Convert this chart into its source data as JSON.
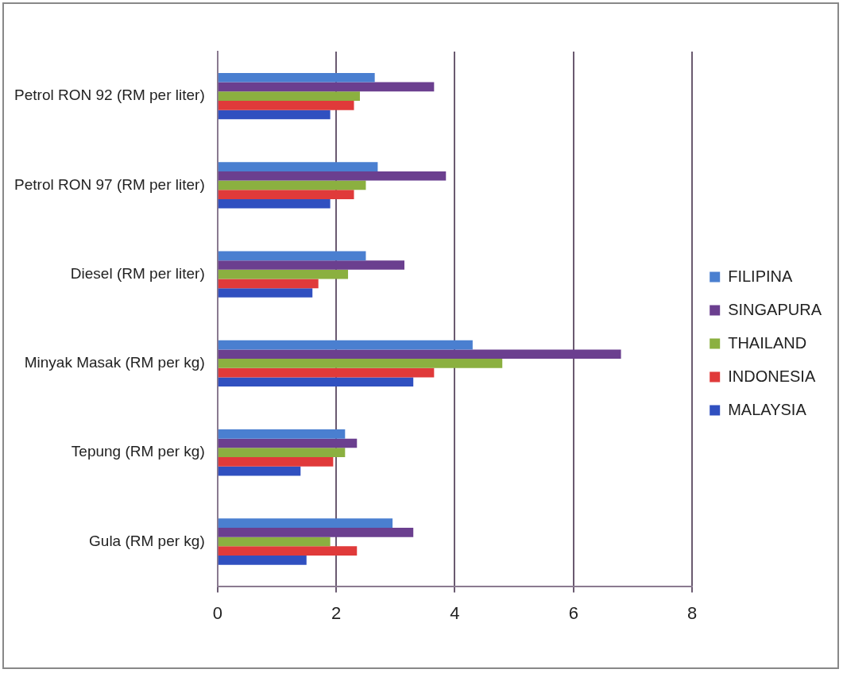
{
  "chart_data": {
    "type": "bar",
    "orientation": "horizontal",
    "categories": [
      "Petrol RON 92 (RM per liter)",
      "Petrol RON 97 (RM per liter)",
      "Diesel (RM per liter)",
      "Minyak Masak (RM per kg)",
      "Tepung (RM per kg)",
      "Gula (RM per kg)"
    ],
    "series": [
      {
        "name": "FILIPINA",
        "color": "#4a7fd0",
        "values": [
          2.65,
          2.7,
          2.5,
          4.3,
          2.15,
          2.95
        ]
      },
      {
        "name": "SINGAPURA",
        "color": "#6b3f8f",
        "values": [
          3.65,
          3.85,
          3.15,
          6.8,
          2.35,
          3.3
        ]
      },
      {
        "name": "THAILAND",
        "color": "#8bb040",
        "values": [
          2.4,
          2.5,
          2.2,
          4.8,
          2.15,
          1.9
        ]
      },
      {
        "name": "INDONESIA",
        "color": "#e03a3a",
        "values": [
          2.3,
          2.3,
          1.7,
          3.65,
          1.95,
          2.35
        ]
      },
      {
        "name": "MALAYSIA",
        "color": "#3050c0",
        "values": [
          1.9,
          1.9,
          1.6,
          3.3,
          1.4,
          1.5
        ]
      }
    ],
    "xlim": [
      0,
      8
    ],
    "xticks": [
      0,
      2,
      4,
      6,
      8
    ],
    "grid": "x",
    "legend": "right"
  }
}
